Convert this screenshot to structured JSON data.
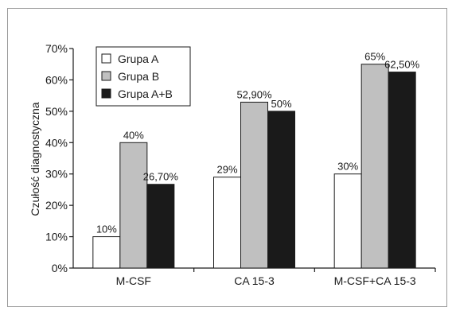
{
  "chart_data": {
    "type": "bar",
    "title": "",
    "xlabel": "",
    "ylabel": "Czułość diagnostyczna",
    "ylim": [
      0,
      70
    ],
    "yticks": [
      "0%",
      "10%",
      "20%",
      "30%",
      "40%",
      "50%",
      "60%",
      "70%"
    ],
    "grid": false,
    "legend_position": "top-left",
    "categories": [
      "M-CSF",
      "CA 15-3",
      "M-CSF+CA 15-3"
    ],
    "series": [
      {
        "name": "Grupa A",
        "color": "#ffffff",
        "values": [
          10,
          29,
          30
        ],
        "labels": [
          "10%",
          "29%",
          "30%"
        ]
      },
      {
        "name": "Grupa B",
        "color": "#c0c0c0",
        "values": [
          40,
          52.9,
          65
        ],
        "labels": [
          "40%",
          "52,90%",
          "65%"
        ]
      },
      {
        "name": "Grupa A+B",
        "color": "#1a1a1a",
        "values": [
          26.7,
          50,
          62.5
        ],
        "labels": [
          "26,70%",
          "50%",
          "62,50%"
        ]
      }
    ]
  }
}
